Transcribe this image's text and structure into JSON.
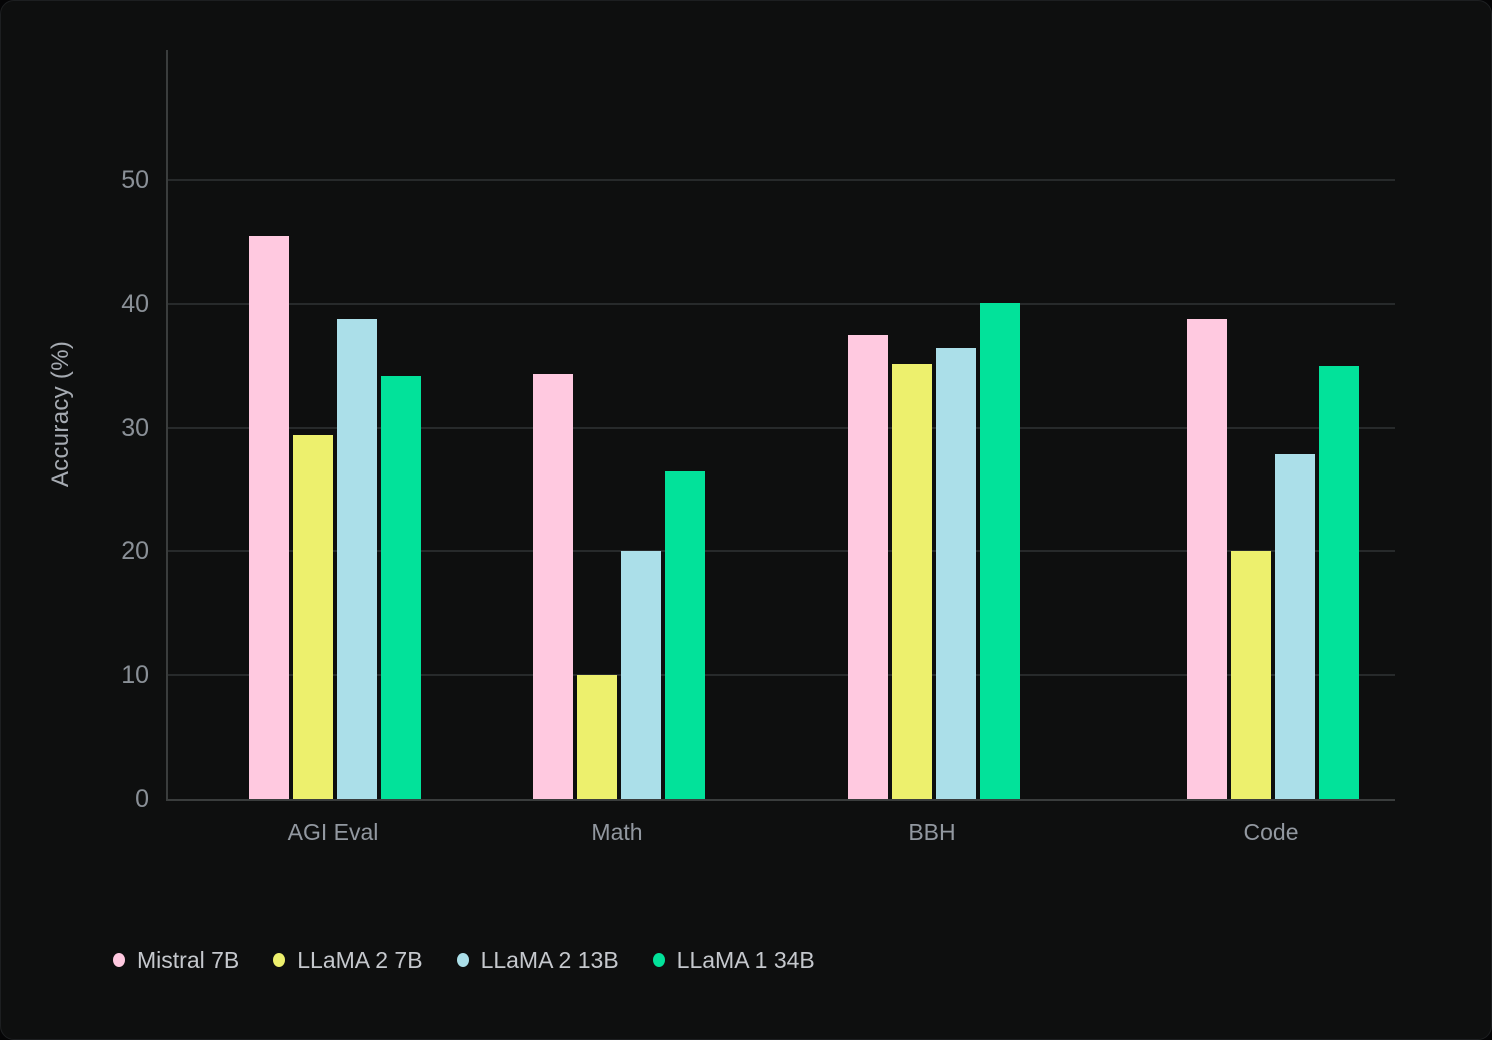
{
  "chart_data": {
    "type": "bar",
    "title": "",
    "xlabel": "",
    "ylabel": "Accuracy (%)",
    "categories": [
      "AGI Eval",
      "Math",
      "BBH",
      "Code"
    ],
    "series": [
      {
        "name": "Mistral 7B",
        "color": "#ffc9e0",
        "values": [
          45.5,
          34.3,
          37.5,
          38.8
        ]
      },
      {
        "name": "LLaMA 2 7B",
        "color": "#edf06d",
        "values": [
          29.4,
          10.0,
          35.1,
          20.0
        ]
      },
      {
        "name": "LLaMA 2 13B",
        "color": "#abdfe9",
        "values": [
          38.8,
          20.0,
          36.4,
          27.9
        ]
      },
      {
        "name": "LLaMA 1 34B",
        "color": "#02e29a",
        "values": [
          34.2,
          26.5,
          40.1,
          35.0
        ]
      }
    ],
    "ylim": [
      0,
      60
    ],
    "yticks": [
      0,
      10,
      20,
      30,
      40,
      50
    ],
    "grid": true,
    "legend_position": "bottom-left"
  },
  "colors": {
    "panel_background": "#0e0f0f",
    "outer_background": "#050506",
    "gridline": "#272a2b",
    "axis_line": "#3a3d3d",
    "tick_text": "#8a9097",
    "category_text": "#9298a0",
    "legend_text": "#c5c8cd",
    "axis_title_text": "#a6abb2"
  }
}
